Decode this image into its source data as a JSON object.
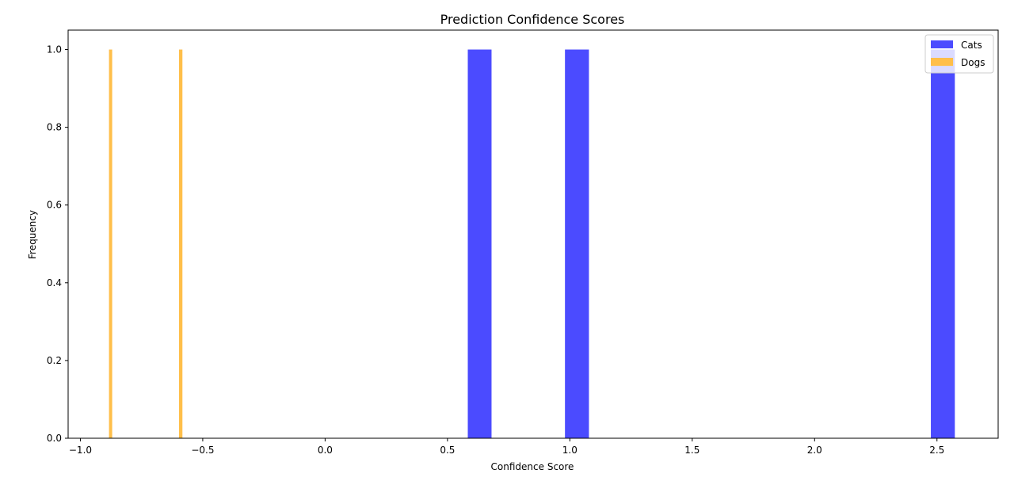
{
  "chart_data": {
    "type": "bar",
    "title": "Prediction Confidence Scores",
    "xlabel": "Confidence Score",
    "ylabel": "Frequency",
    "xlim": [
      -1.05,
      2.75
    ],
    "ylim": [
      0,
      1.05
    ],
    "xticks": [
      -1.0,
      -0.5,
      0.0,
      0.5,
      1.0,
      1.5,
      2.0,
      2.5
    ],
    "xtick_labels": [
      "−1.0",
      "−0.5",
      "0.0",
      "0.5",
      "1.0",
      "1.5",
      "2.0",
      "2.5"
    ],
    "yticks": [
      0.0,
      0.2,
      0.4,
      0.6,
      0.8,
      1.0
    ],
    "ytick_labels": [
      "0.0",
      "0.2",
      "0.4",
      "0.6",
      "0.8",
      "1.0"
    ],
    "grid": false,
    "legend": "top-right",
    "series": [
      {
        "name": "Cats",
        "color": "#4b4bff",
        "bars": [
          {
            "x0": 0.583,
            "x1": 0.68,
            "value": 1
          },
          {
            "x0": 0.98,
            "x1": 1.078,
            "value": 1
          },
          {
            "x0": 2.475,
            "x1": 2.573,
            "value": 1
          }
        ]
      },
      {
        "name": "Dogs",
        "color": "#ffbf4a",
        "bars": [
          {
            "x0": -0.883,
            "x1": -0.87,
            "value": 1
          },
          {
            "x0": -0.597,
            "x1": -0.583,
            "value": 1
          }
        ]
      }
    ]
  }
}
